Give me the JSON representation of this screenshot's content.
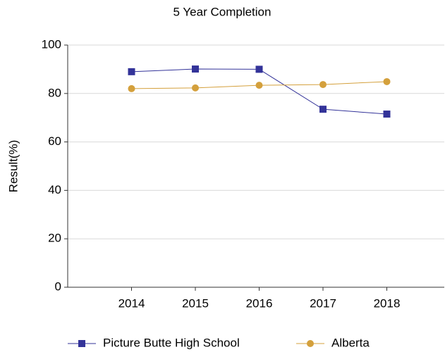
{
  "chart_data": {
    "type": "line",
    "title": "5 Year Completion",
    "y_label": "Result(%)",
    "categories": [
      "2014",
      "2015",
      "2016",
      "2017",
      "2018"
    ],
    "series": [
      {
        "name": "Picture Butte High School",
        "color": "#333399",
        "marker": "square",
        "values": [
          89.0,
          90.1,
          90.0,
          73.5,
          71.5
        ]
      },
      {
        "name": "Alberta",
        "color": "#d4a03c",
        "marker": "circle",
        "values": [
          82.0,
          82.3,
          83.4,
          83.7,
          84.9
        ]
      }
    ],
    "ylim": [
      0,
      100
    ],
    "yticks": [
      0,
      20,
      40,
      60,
      80,
      100
    ],
    "grid": true
  }
}
